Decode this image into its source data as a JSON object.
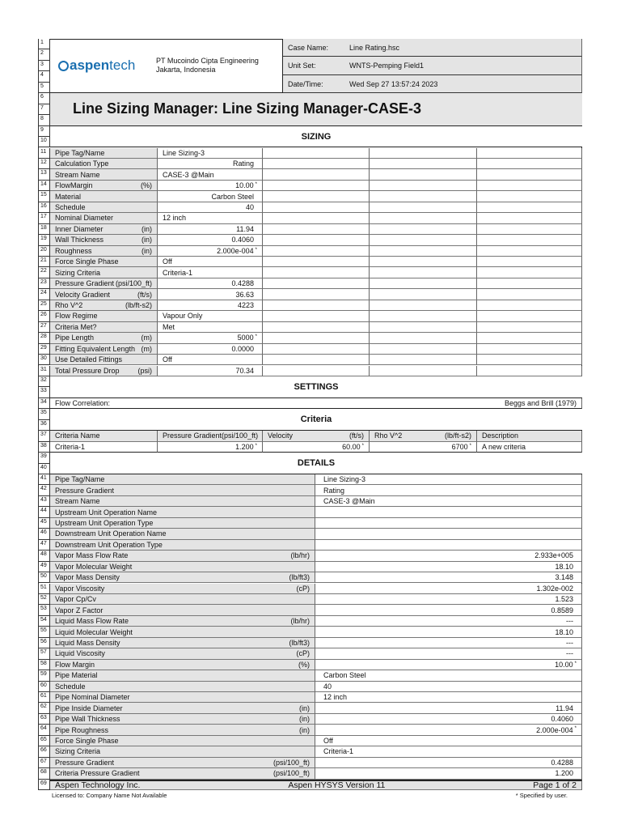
{
  "header": {
    "logo_text": "aspentech",
    "company": "PT Mucoindo Cipta Engineering",
    "location": "Jakarta, Indonesia",
    "case_name_label": "Case Name:",
    "case_name": "Line Rating.hsc",
    "unit_set_label": "Unit Set:",
    "unit_set": "WNTS-Pemping Field1",
    "datetime_label": "Date/Time:",
    "datetime": "Wed Sep 27 13:57:24 2023"
  },
  "title": "Line Sizing Manager:  Line Sizing Manager-CASE-3",
  "sizing": {
    "heading": "SIZING",
    "rows": [
      {
        "label": "Pipe Tag/Name",
        "unit": "",
        "value": "Line Sizing-3",
        "align": "left"
      },
      {
        "label": "Calculation Type",
        "unit": "",
        "value": "Rating",
        "align": "right"
      },
      {
        "label": "Stream Name",
        "unit": "",
        "value": "CASE-3 @Main",
        "align": "left"
      },
      {
        "label": "FlowMargin",
        "unit": "(%)",
        "value": "10.00",
        "align": "right",
        "specified": true
      },
      {
        "label": "Material",
        "unit": "",
        "value": "Carbon Steel",
        "align": "right"
      },
      {
        "label": "Schedule",
        "unit": "",
        "value": "40",
        "align": "right"
      },
      {
        "label": "Nominal Diameter",
        "unit": "",
        "value": "12 inch",
        "align": "left"
      },
      {
        "label": "Inner Diameter",
        "unit": "(in)",
        "value": "11.94",
        "align": "right"
      },
      {
        "label": "Wall Thickness",
        "unit": "(in)",
        "value": "0.4060",
        "align": "right"
      },
      {
        "label": "Roughness",
        "unit": "(in)",
        "value": "2.000e-004",
        "align": "right",
        "specified": true
      },
      {
        "label": "Force Single Phase",
        "unit": "",
        "value": "Off",
        "align": "left"
      },
      {
        "label": "Sizing Criteria",
        "unit": "",
        "value": "Criteria-1",
        "align": "left"
      },
      {
        "label": "Pressure Gradient",
        "unit": "(psi/100_ft)",
        "value": "0.4288",
        "align": "right"
      },
      {
        "label": "Velocity Gradient",
        "unit": "(ft/s)",
        "value": "36.63",
        "align": "right"
      },
      {
        "label": "Rho V^2",
        "unit": "(lb/ft-s2)",
        "value": "4223",
        "align": "right"
      },
      {
        "label": "Flow Regime",
        "unit": "",
        "value": "Vapour Only",
        "align": "left"
      },
      {
        "label": "Criteria Met?",
        "unit": "",
        "value": "Met",
        "align": "left"
      },
      {
        "label": "Pipe Length",
        "unit": "(m)",
        "value": "5000",
        "align": "right",
        "specified": true
      },
      {
        "label": "Fitting Equivalent Length",
        "unit": "(m)",
        "value": "0.0000",
        "align": "right"
      },
      {
        "label": "Use Detailed Fittings",
        "unit": "",
        "value": "Off",
        "align": "left"
      },
      {
        "label": "Total Pressure Drop",
        "unit": "(psi)",
        "value": "70.34",
        "align": "right"
      }
    ]
  },
  "settings": {
    "heading": "SETTINGS",
    "flow_correlation_label": "Flow Correlation:",
    "flow_correlation": "Beggs and Brill (1979)"
  },
  "criteria": {
    "heading": "Criteria",
    "columns": [
      {
        "label": "Criteria Name",
        "unit": ""
      },
      {
        "label": "Pressure Gradient",
        "unit": "(psi/100_ft)"
      },
      {
        "label": "Velocity",
        "unit": "(ft/s)"
      },
      {
        "label": "Rho V^2",
        "unit": "(lb/ft-s2)"
      },
      {
        "label": "Description",
        "unit": ""
      }
    ],
    "rows": [
      [
        {
          "value": "Criteria-1",
          "align": "left"
        },
        {
          "value": "1.200",
          "align": "right",
          "specified": true
        },
        {
          "value": "60.00",
          "align": "right",
          "specified": true
        },
        {
          "value": "6700",
          "align": "right",
          "specified": true
        },
        {
          "value": "A new criteria",
          "align": "left"
        }
      ]
    ]
  },
  "details": {
    "heading": "DETAILS",
    "rows": [
      {
        "label": "Pipe Tag/Name",
        "unit": "",
        "value": "Line Sizing-3",
        "align": "left"
      },
      {
        "label": "Pressure Gradient",
        "unit": "",
        "value": "Rating",
        "align": "left"
      },
      {
        "label": "Stream Name",
        "unit": "",
        "value": "CASE-3 @Main",
        "align": "left"
      },
      {
        "label": "Upstream Unit Operation Name",
        "unit": "",
        "value": "",
        "align": "left"
      },
      {
        "label": "Upstream Unit Operation Type",
        "unit": "",
        "value": "",
        "align": "left"
      },
      {
        "label": "Downstream Unit Operation Name",
        "unit": "",
        "value": "",
        "align": "left"
      },
      {
        "label": "Downstream Unit Operation Type",
        "unit": "",
        "value": "",
        "align": "left"
      },
      {
        "label": "Vapor Mass Flow Rate",
        "unit": "(lb/hr)",
        "value": "2.933e+005",
        "align": "right"
      },
      {
        "label": "Vapor Molecular Weight",
        "unit": "",
        "value": "18.10",
        "align": "right"
      },
      {
        "label": "Vapor Mass Density",
        "unit": "(lb/ft3)",
        "value": "3.148",
        "align": "right"
      },
      {
        "label": "Vapor Viscosity",
        "unit": "(cP)",
        "value": "1.302e-002",
        "align": "right"
      },
      {
        "label": "Vapor Cp/Cv",
        "unit": "",
        "value": "1.523",
        "align": "right"
      },
      {
        "label": "Vapor Z Factor",
        "unit": "",
        "value": "0.8589",
        "align": "right"
      },
      {
        "label": "Liquid Mass Flow Rate",
        "unit": "(lb/hr)",
        "value": "---",
        "align": "right"
      },
      {
        "label": "Liquid Molecular Weight",
        "unit": "",
        "value": "18.10",
        "align": "right"
      },
      {
        "label": "Liquid Mass Density",
        "unit": "(lb/ft3)",
        "value": "---",
        "align": "right"
      },
      {
        "label": "Liquid Viscosity",
        "unit": "(cP)",
        "value": "---",
        "align": "right"
      },
      {
        "label": "Flow Margin",
        "unit": "(%)",
        "value": "10.00",
        "align": "right",
        "specified": true
      },
      {
        "label": "Pipe Material",
        "unit": "",
        "value": "Carbon Steel",
        "align": "left"
      },
      {
        "label": "Schedule",
        "unit": "",
        "value": "40",
        "align": "left"
      },
      {
        "label": "Pipe Nominal Diameter",
        "unit": "",
        "value": "12 inch",
        "align": "left"
      },
      {
        "label": "Pipe Inside Diameter",
        "unit": "(in)",
        "value": "11.94",
        "align": "right"
      },
      {
        "label": "Pipe Wall Thickness",
        "unit": "(in)",
        "value": "0.4060",
        "align": "right"
      },
      {
        "label": "Pipe Roughness",
        "unit": "(in)",
        "value": "2.000e-004",
        "align": "right",
        "specified": true
      },
      {
        "label": "Force Single Phase",
        "unit": "",
        "value": "Off",
        "align": "left"
      },
      {
        "label": "Sizing Criteria",
        "unit": "",
        "value": "Criteria-1",
        "align": "left"
      },
      {
        "label": "Pressure Gradient",
        "unit": "(psi/100_ft)",
        "value": "0.4288",
        "align": "right"
      },
      {
        "label": "Criteria Pressure Gradient",
        "unit": "(psi/100_ft)",
        "value": "1.200",
        "align": "right"
      }
    ]
  },
  "footer": {
    "company": "Aspen Technology Inc.",
    "product": "Aspen HYSYS Version 11",
    "page": "Page 1 of 2",
    "license": "Licensed to: Company Name Not Available",
    "specified_note": "* Specified by user.",
    "specified_marker": "*"
  },
  "row_count": 69,
  "colors": {
    "label_bg": "#e4e4e4",
    "title_bg": "#e6e6e6",
    "logo_blue": "#1a6fb0"
  }
}
